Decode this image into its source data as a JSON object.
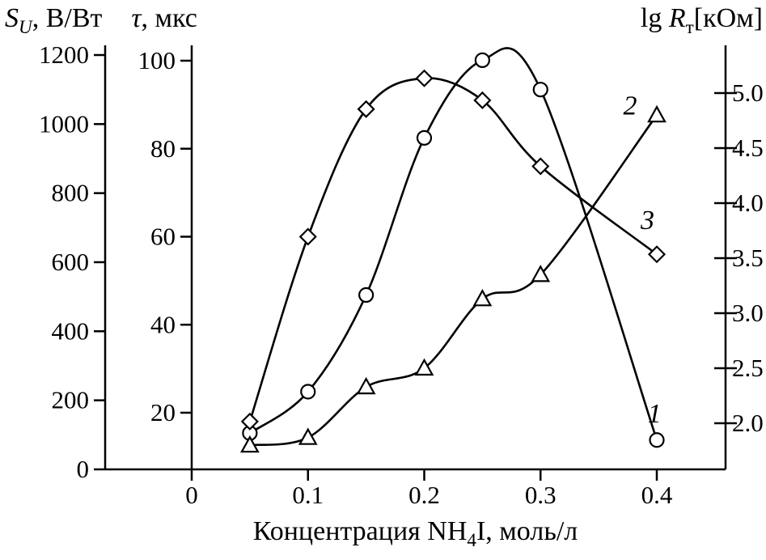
{
  "chart_data": {
    "type": "line",
    "title": "",
    "grid": false,
    "colors": {
      "stroke": "#000000",
      "background": "#ffffff"
    },
    "axes": {
      "x": {
        "label": "Концентрация NH4I, моль/л",
        "label_parts": {
          "pre": "Концентрация NH",
          "sub": "4",
          "post": "I, моль/л"
        },
        "ticks": [
          "0",
          "0.1",
          "0.2",
          "0.3",
          "0.4"
        ],
        "range": [
          0,
          0.46
        ]
      },
      "left_su": {
        "label": "S_U, В/Вт",
        "label_parts": {
          "sym": "S",
          "sub": "U",
          "rest": ", В/Вт"
        },
        "ticks": [
          "0",
          "200",
          "400",
          "600",
          "800",
          "1000",
          "1200"
        ],
        "range": [
          0,
          1200
        ]
      },
      "left_tau": {
        "label": "τ, мкс",
        "label_parts": {
          "sym": "τ",
          "rest": ", мкс"
        },
        "ticks": [
          "20",
          "40",
          "60",
          "80",
          "100"
        ],
        "range": [
          20,
          100
        ]
      },
      "right_lg": {
        "label": "lg R_т[кОм]",
        "label_parts": {
          "pre": "lg ",
          "sym": "R",
          "sub": "т",
          "post": "[кОм]"
        },
        "ticks": [
          "2.0",
          "2.5",
          "3.0",
          "3.5",
          "4.0",
          "4.5",
          "5.0"
        ],
        "range": [
          2.0,
          5.0
        ]
      }
    },
    "series": [
      {
        "name": "1",
        "marker": "circle",
        "axis": "su",
        "x": [
          0.05,
          0.1,
          0.15,
          0.2,
          0.25,
          0.3,
          0.4
        ],
        "values": [
          105,
          225,
          505,
          960,
          1185,
          1100,
          85
        ],
        "label": {
          "text": "1",
          "x": 0.398,
          "tau_y": 20
        }
      },
      {
        "name": "2",
        "marker": "triangle",
        "axis": "lg",
        "x": [
          0.05,
          0.1,
          0.15,
          0.2,
          0.25,
          0.3,
          0.4
        ],
        "values": [
          1.8,
          1.87,
          2.33,
          2.5,
          3.13,
          3.35,
          4.8
        ],
        "label": {
          "text": "2",
          "x": 0.377,
          "tau_y": 90
        }
      },
      {
        "name": "3",
        "marker": "diamond",
        "axis": "tau",
        "x": [
          0.05,
          0.1,
          0.15,
          0.2,
          0.25,
          0.3,
          0.4
        ],
        "values": [
          18,
          60,
          89,
          96,
          91,
          76,
          56
        ],
        "label": {
          "text": "3",
          "x": 0.392,
          "tau_y": 64
        }
      }
    ]
  }
}
